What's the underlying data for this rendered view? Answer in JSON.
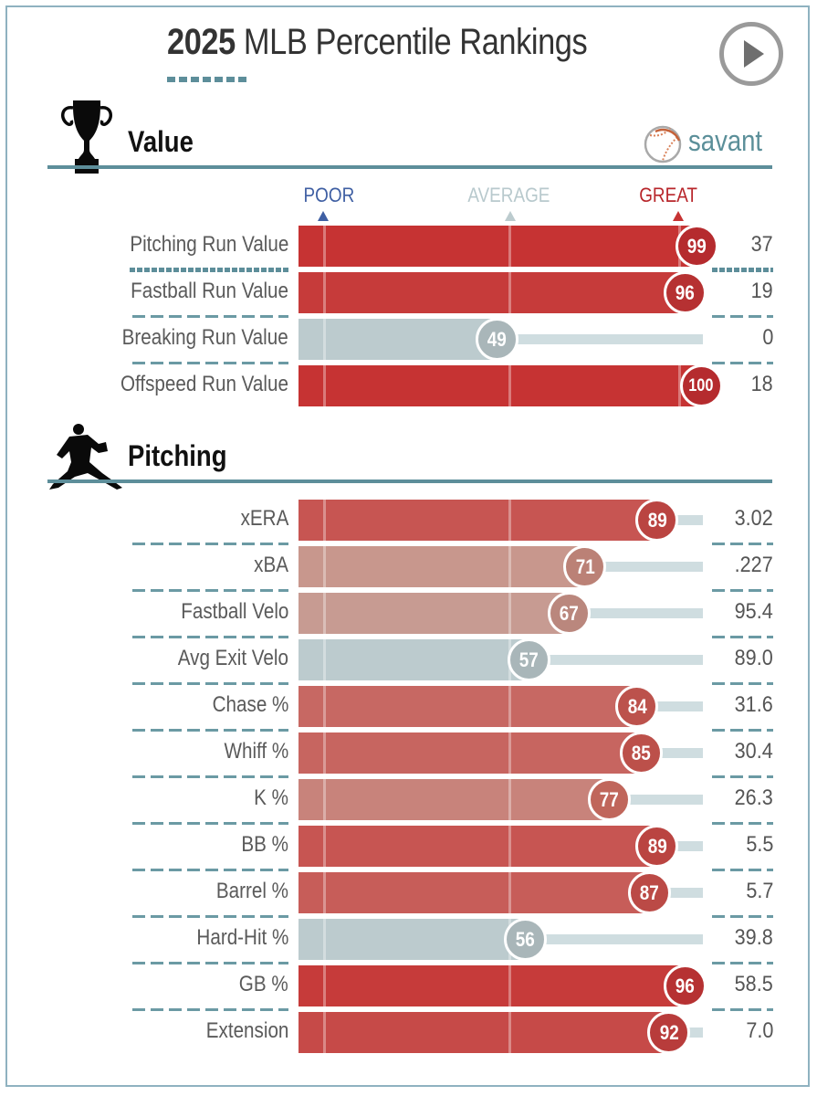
{
  "header": {
    "title_year": "2025",
    "title_rest": " MLB Percentile Rankings",
    "play_button": "play-icon"
  },
  "brand": {
    "text": "savant",
    "icon": "baseball-icon"
  },
  "legend": {
    "poor": "POOR",
    "average": "AVERAGE",
    "great": "GREAT"
  },
  "colors": {
    "great": "#c63333",
    "poor": "#3f5fa3",
    "average": "#bccbce",
    "accent": "#5d8e9a"
  },
  "chart_data": {
    "type": "bar",
    "title": "2025 MLB Percentile Rankings",
    "xlabel": "Percentile",
    "xlim": [
      0,
      100
    ],
    "scale_labels": [
      "POOR",
      "AVERAGE",
      "GREAT"
    ],
    "sections": [
      {
        "name": "Value",
        "icon": "trophy-icon",
        "metrics": [
          {
            "label": "Pitching Run Value",
            "percentile": 99,
            "value": "37"
          },
          {
            "label": "Fastball Run Value",
            "percentile": 96,
            "value": "19"
          },
          {
            "label": "Breaking Run Value",
            "percentile": 49,
            "value": "0"
          },
          {
            "label": "Offspeed Run Value",
            "percentile": 100,
            "value": "18"
          }
        ]
      },
      {
        "name": "Pitching",
        "icon": "pitcher-icon",
        "metrics": [
          {
            "label": "xERA",
            "percentile": 89,
            "value": "3.02"
          },
          {
            "label": "xBA",
            "percentile": 71,
            "value": ".227"
          },
          {
            "label": "Fastball Velo",
            "percentile": 67,
            "value": "95.4"
          },
          {
            "label": "Avg Exit Velo",
            "percentile": 57,
            "value": "89.0"
          },
          {
            "label": "Chase %",
            "percentile": 84,
            "value": "31.6"
          },
          {
            "label": "Whiff %",
            "percentile": 85,
            "value": "30.4"
          },
          {
            "label": "K %",
            "percentile": 77,
            "value": "26.3"
          },
          {
            "label": "BB %",
            "percentile": 89,
            "value": "5.5"
          },
          {
            "label": "Barrel %",
            "percentile": 87,
            "value": "5.7"
          },
          {
            "label": "Hard-Hit %",
            "percentile": 56,
            "value": "39.8"
          },
          {
            "label": "GB %",
            "percentile": 96,
            "value": "58.5"
          },
          {
            "label": "Extension",
            "percentile": 92,
            "value": "7.0"
          }
        ]
      }
    ]
  }
}
